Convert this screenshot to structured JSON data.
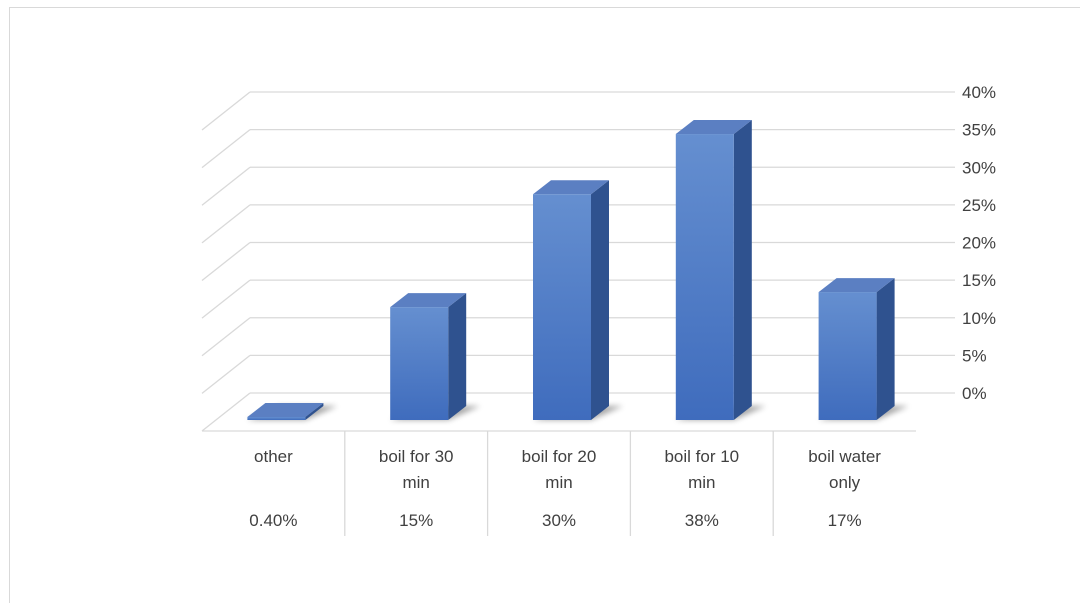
{
  "chart_data": {
    "type": "bar",
    "style": "3d-column",
    "categories": [
      "other",
      "boil for 30 min",
      "boil for 20 min",
      "boil for 10 min",
      "boil water only"
    ],
    "category_lines": [
      [
        "other"
      ],
      [
        "boil for 30",
        "min"
      ],
      [
        "boil for 20",
        "min"
      ],
      [
        "boil for 10",
        "min"
      ],
      [
        "boil water",
        "only"
      ]
    ],
    "values": [
      0.4,
      15,
      30,
      38,
      17
    ],
    "value_labels": [
      "0.40%",
      "15%",
      "30%",
      "38%",
      "17%"
    ],
    "title": "",
    "xlabel": "",
    "ylabel": "",
    "ylim": [
      0,
      40
    ],
    "y_ticks": [
      "0%",
      "5%",
      "10%",
      "15%",
      "20%",
      "25%",
      "30%",
      "35%",
      "40%"
    ],
    "y_axis_side": "right",
    "grid": true,
    "legend": "none",
    "data_table": true,
    "colors": {
      "bar": "#4472c4",
      "bar_side": "#2f528f",
      "bar_top": "#5b7fc2",
      "grid": "#d9d9d9",
      "text": "#404040"
    }
  }
}
